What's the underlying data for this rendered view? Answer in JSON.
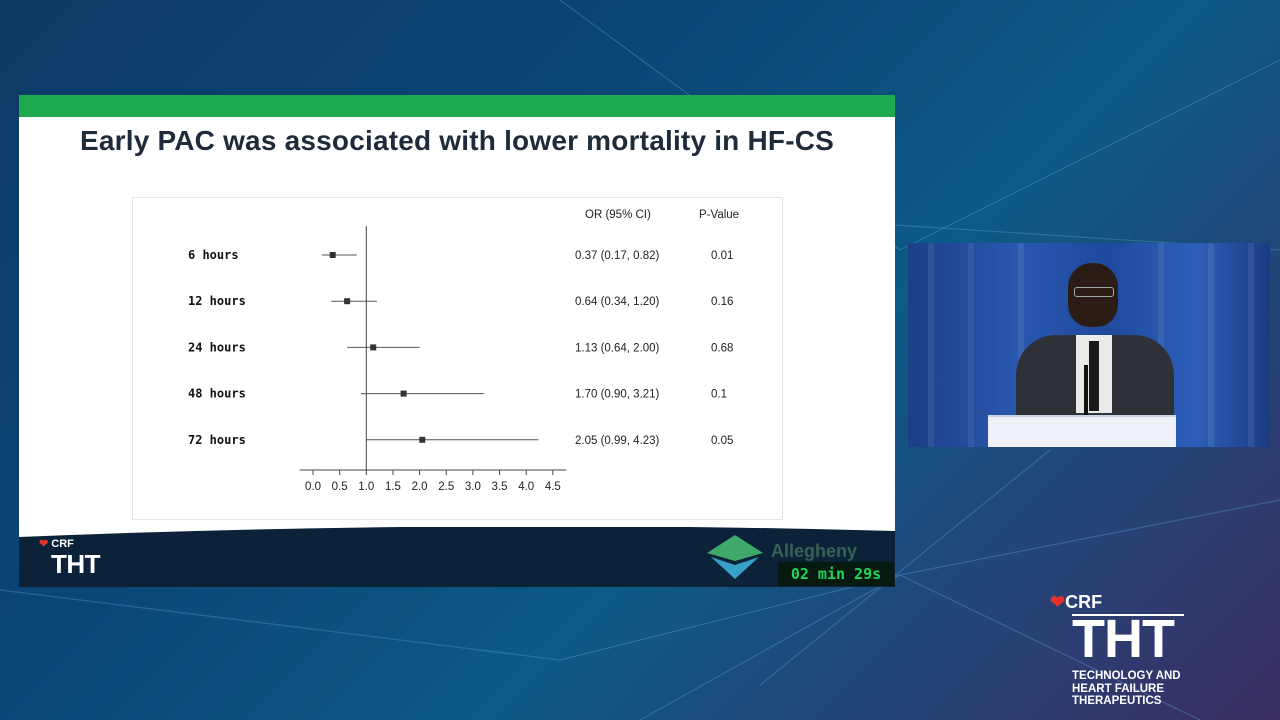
{
  "slide": {
    "title": "Early PAC was associated with lower mortality in HF-CS",
    "column_headers": {
      "or": "OR (95% CI)",
      "p": "P-Value"
    },
    "footer": {
      "crf": "CRF",
      "tht": "THT",
      "sponsor": "Allegheny"
    }
  },
  "timer": "02 min 29s",
  "logo": {
    "crf": "CRF",
    "tht": "THT",
    "subtitle_line1": "TECHNOLOGY AND",
    "subtitle_line2": "HEART FAILURE THERAPEUTICS"
  },
  "chart_data": {
    "type": "forest",
    "categories": [
      "6 hours",
      "12 hours",
      "24 hours",
      "48 hours",
      "72 hours"
    ],
    "estimates": [
      0.37,
      0.64,
      1.13,
      1.7,
      2.05
    ],
    "ci_low": [
      0.17,
      0.34,
      0.64,
      0.9,
      0.99
    ],
    "ci_high": [
      0.82,
      1.2,
      2.0,
      3.21,
      4.23
    ],
    "or_labels": [
      "0.37 (0.17, 0.82)",
      "0.64 (0.34, 1.20)",
      "1.13 (0.64, 2.00)",
      "1.70 (0.90, 3.21)",
      "2.05 (0.99, 4.23)"
    ],
    "p_values": [
      "0.01",
      "0.16",
      "0.68",
      "0.1",
      "0.05"
    ],
    "xticks": [
      "0.0",
      "0.5",
      "1.0",
      "1.5",
      "2.0",
      "2.5",
      "3.0",
      "3.5",
      "4.0",
      "4.5"
    ],
    "xlim": [
      0,
      4.5
    ],
    "reference_line": 1.0
  }
}
